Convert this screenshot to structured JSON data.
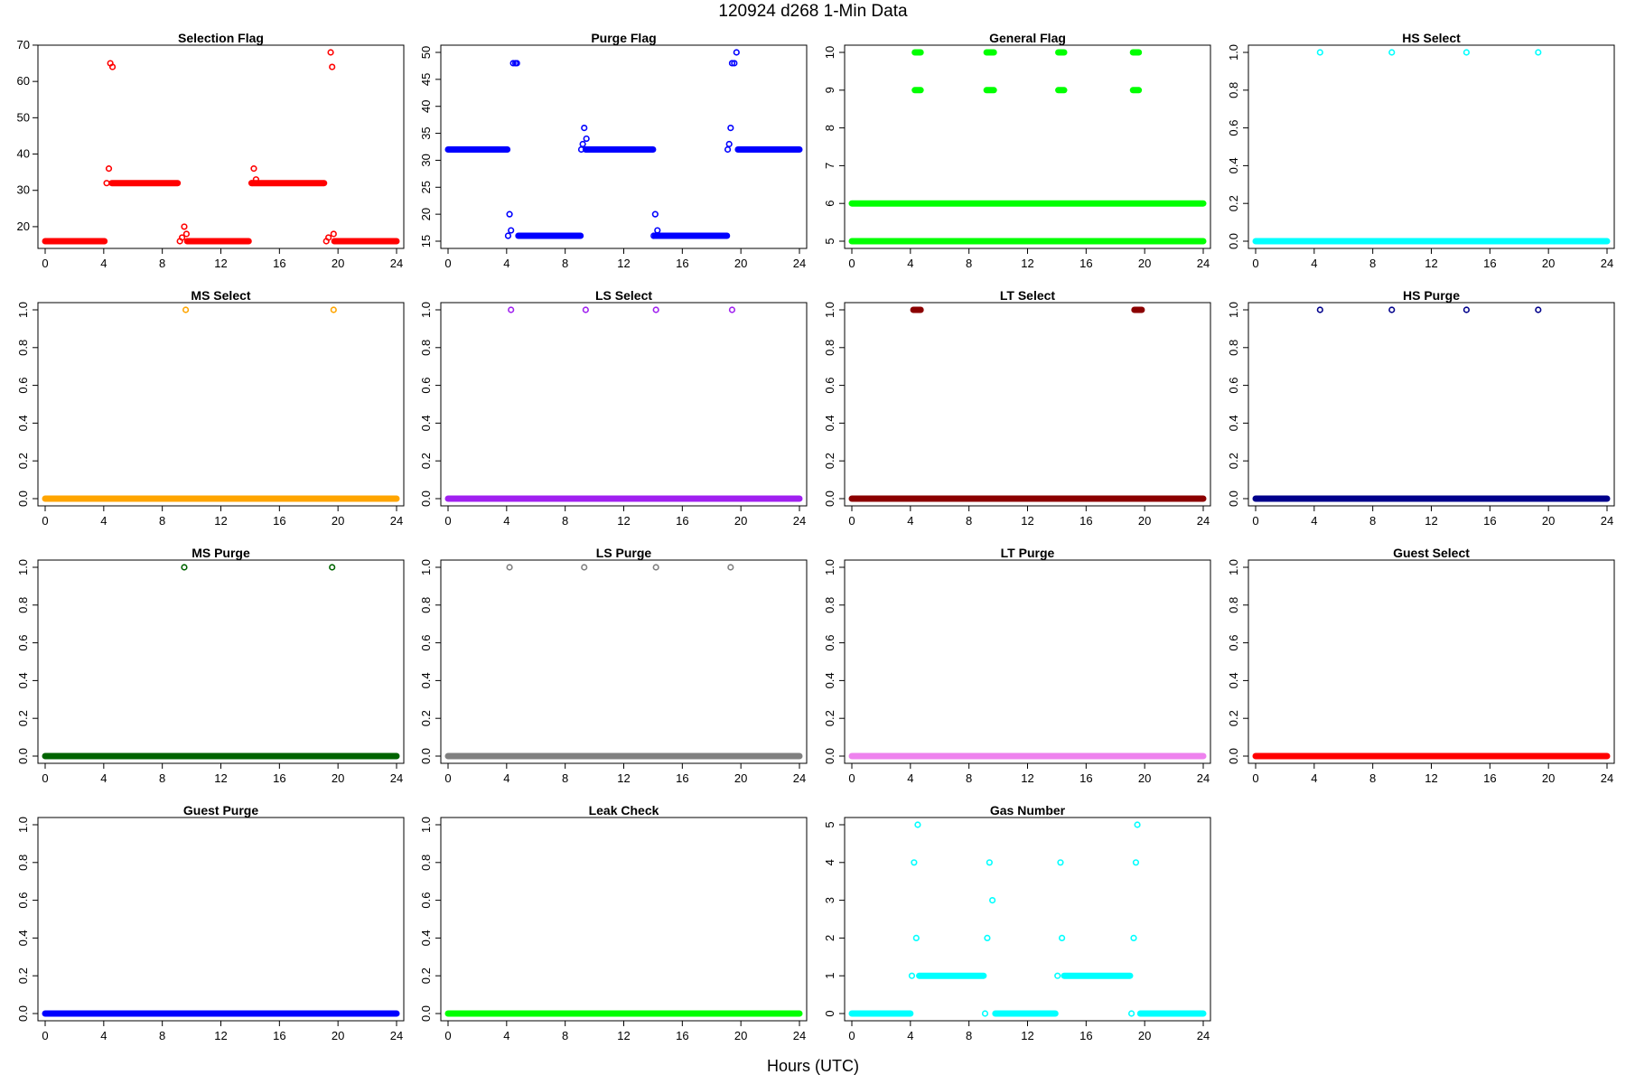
{
  "figure": {
    "title": "120924   d268   1-Min Data",
    "xlabel": "Hours (UTC)"
  },
  "chart_data": [
    {
      "type": "scatter",
      "title": "Selection Flag",
      "color": "#ff0000",
      "xlim": [
        0,
        24
      ],
      "ylim": [
        16,
        68
      ],
      "xticks": [
        0,
        4,
        8,
        12,
        16,
        20,
        24
      ],
      "yticks": [
        20,
        30,
        40,
        50,
        60,
        70
      ],
      "yrot": false,
      "segments": [
        [
          0,
          4.05,
          16
        ],
        [
          4.55,
          9.05,
          32
        ],
        [
          9.7,
          13.9,
          16
        ],
        [
          14.15,
          19.05,
          32
        ],
        [
          19.75,
          24,
          16
        ]
      ],
      "points": [
        [
          4.2,
          32
        ],
        [
          4.35,
          36
        ],
        [
          4.45,
          65
        ],
        [
          4.6,
          64
        ],
        [
          9.2,
          16
        ],
        [
          9.35,
          17
        ],
        [
          9.5,
          20
        ],
        [
          9.65,
          18
        ],
        [
          14.1,
          32
        ],
        [
          14.25,
          36
        ],
        [
          14.4,
          33
        ],
        [
          19.2,
          16
        ],
        [
          19.35,
          17
        ],
        [
          19.5,
          68
        ],
        [
          19.6,
          64
        ],
        [
          19.7,
          18
        ]
      ]
    },
    {
      "type": "scatter",
      "title": "Purge Flag",
      "color": "#0000ff",
      "xlim": [
        0,
        24
      ],
      "ylim": [
        15,
        50
      ],
      "xticks": [
        0,
        4,
        8,
        12,
        16,
        20,
        24
      ],
      "yticks": [
        15,
        20,
        25,
        30,
        35,
        40,
        45,
        50
      ],
      "yrot": true,
      "segments": [
        [
          0,
          4.05,
          32
        ],
        [
          4.8,
          9.05,
          16
        ],
        [
          9.4,
          14.0,
          32
        ],
        [
          14.15,
          19.05,
          16
        ],
        [
          19.8,
          24,
          32
        ]
      ],
      "points": [
        [
          4.1,
          16
        ],
        [
          4.2,
          20
        ],
        [
          4.3,
          17
        ],
        [
          4.45,
          48
        ],
        [
          4.6,
          48
        ],
        [
          4.7,
          48
        ],
        [
          9.1,
          32
        ],
        [
          9.2,
          33
        ],
        [
          9.3,
          36
        ],
        [
          9.45,
          34
        ],
        [
          14.05,
          16
        ],
        [
          14.15,
          20
        ],
        [
          14.3,
          17
        ],
        [
          19.1,
          32
        ],
        [
          19.2,
          33
        ],
        [
          19.3,
          36
        ],
        [
          19.4,
          48
        ],
        [
          19.55,
          48
        ],
        [
          19.7,
          50
        ]
      ]
    },
    {
      "type": "scatter",
      "title": "General Flag",
      "color": "#00ff00",
      "xlim": [
        0,
        24
      ],
      "ylim": [
        5,
        10
      ],
      "xticks": [
        0,
        4,
        8,
        12,
        16,
        20,
        24
      ],
      "yticks": [
        5,
        6,
        7,
        8,
        9,
        10
      ],
      "yrot": true,
      "segments": [
        [
          0,
          24,
          5
        ],
        [
          0,
          24,
          6
        ],
        [
          4.3,
          4.7,
          9
        ],
        [
          4.3,
          4.7,
          10
        ],
        [
          9.2,
          9.7,
          9
        ],
        [
          9.2,
          9.7,
          10
        ],
        [
          14.1,
          14.5,
          9
        ],
        [
          14.1,
          14.5,
          10
        ],
        [
          19.2,
          19.6,
          9
        ],
        [
          19.2,
          19.6,
          10
        ]
      ],
      "points": []
    },
    {
      "type": "scatter",
      "title": "HS Select",
      "color": "#00ffff",
      "xlim": [
        0,
        24
      ],
      "ylim": [
        0,
        1
      ],
      "xticks": [
        0,
        4,
        8,
        12,
        16,
        20,
        24
      ],
      "yticks": [
        0,
        0.2,
        0.4,
        0.6,
        0.8,
        1
      ],
      "yrot": true,
      "segments": [
        [
          0,
          24,
          0
        ]
      ],
      "points": [
        [
          4.4,
          1
        ],
        [
          9.3,
          1
        ],
        [
          14.4,
          1
        ],
        [
          19.3,
          1
        ]
      ]
    },
    {
      "type": "scatter",
      "title": "MS Select",
      "color": "#ffa500",
      "xlim": [
        0,
        24
      ],
      "ylim": [
        0,
        1
      ],
      "xticks": [
        0,
        4,
        8,
        12,
        16,
        20,
        24
      ],
      "yticks": [
        0,
        0.2,
        0.4,
        0.6,
        0.8,
        1
      ],
      "yrot": true,
      "segments": [
        [
          0,
          24,
          0
        ]
      ],
      "points": [
        [
          9.6,
          1
        ],
        [
          19.7,
          1
        ]
      ]
    },
    {
      "type": "scatter",
      "title": "LS Select",
      "color": "#a020f0",
      "xlim": [
        0,
        24
      ],
      "ylim": [
        0,
        1
      ],
      "xticks": [
        0,
        4,
        8,
        12,
        16,
        20,
        24
      ],
      "yticks": [
        0,
        0.2,
        0.4,
        0.6,
        0.8,
        1
      ],
      "yrot": true,
      "segments": [
        [
          0,
          24,
          0
        ]
      ],
      "points": [
        [
          4.3,
          1
        ],
        [
          9.4,
          1
        ],
        [
          14.2,
          1
        ],
        [
          19.4,
          1
        ]
      ]
    },
    {
      "type": "scatter",
      "title": "LT Select",
      "color": "#8b0000",
      "xlim": [
        0,
        24
      ],
      "ylim": [
        0,
        1
      ],
      "xticks": [
        0,
        4,
        8,
        12,
        16,
        20,
        24
      ],
      "yticks": [
        0,
        0.2,
        0.4,
        0.6,
        0.8,
        1
      ],
      "yrot": true,
      "segments": [
        [
          0,
          24,
          0
        ],
        [
          4.2,
          4.7,
          1
        ],
        [
          19.3,
          19.8,
          1
        ]
      ],
      "points": []
    },
    {
      "type": "scatter",
      "title": "HS Purge",
      "color": "#00008b",
      "xlim": [
        0,
        24
      ],
      "ylim": [
        0,
        1
      ],
      "xticks": [
        0,
        4,
        8,
        12,
        16,
        20,
        24
      ],
      "yticks": [
        0,
        0.2,
        0.4,
        0.6,
        0.8,
        1
      ],
      "yrot": true,
      "segments": [
        [
          0,
          24,
          0
        ]
      ],
      "points": [
        [
          4.4,
          1
        ],
        [
          9.3,
          1
        ],
        [
          14.4,
          1
        ],
        [
          19.3,
          1
        ]
      ]
    },
    {
      "type": "scatter",
      "title": "MS Purge",
      "color": "#006400",
      "xlim": [
        0,
        24
      ],
      "ylim": [
        0,
        1
      ],
      "xticks": [
        0,
        4,
        8,
        12,
        16,
        20,
        24
      ],
      "yticks": [
        0,
        0.2,
        0.4,
        0.6,
        0.8,
        1
      ],
      "yrot": true,
      "segments": [
        [
          0,
          24,
          0
        ]
      ],
      "points": [
        [
          9.5,
          1
        ],
        [
          19.6,
          1
        ]
      ]
    },
    {
      "type": "scatter",
      "title": "LS Purge",
      "color": "#808080",
      "xlim": [
        0,
        24
      ],
      "ylim": [
        0,
        1
      ],
      "xticks": [
        0,
        4,
        8,
        12,
        16,
        20,
        24
      ],
      "yticks": [
        0,
        0.2,
        0.4,
        0.6,
        0.8,
        1
      ],
      "yrot": true,
      "segments": [
        [
          0,
          24,
          0
        ]
      ],
      "points": [
        [
          4.2,
          1
        ],
        [
          9.3,
          1
        ],
        [
          14.2,
          1
        ],
        [
          19.3,
          1
        ]
      ]
    },
    {
      "type": "scatter",
      "title": "LT Purge",
      "color": "#ee82ee",
      "xlim": [
        0,
        24
      ],
      "ylim": [
        0,
        1
      ],
      "xticks": [
        0,
        4,
        8,
        12,
        16,
        20,
        24
      ],
      "yticks": [
        0,
        0.2,
        0.4,
        0.6,
        0.8,
        1
      ],
      "yrot": true,
      "segments": [
        [
          0,
          24,
          0
        ]
      ],
      "points": []
    },
    {
      "type": "scatter",
      "title": "Guest Select",
      "color": "#ff0000",
      "xlim": [
        0,
        24
      ],
      "ylim": [
        0,
        1
      ],
      "xticks": [
        0,
        4,
        8,
        12,
        16,
        20,
        24
      ],
      "yticks": [
        0,
        0.2,
        0.4,
        0.6,
        0.8,
        1
      ],
      "yrot": true,
      "segments": [
        [
          0,
          24,
          0
        ]
      ],
      "points": []
    },
    {
      "type": "scatter",
      "title": "Guest Purge",
      "color": "#0000ff",
      "xlim": [
        0,
        24
      ],
      "ylim": [
        0,
        1
      ],
      "xticks": [
        0,
        4,
        8,
        12,
        16,
        20,
        24
      ],
      "yticks": [
        0,
        0.2,
        0.4,
        0.6,
        0.8,
        1
      ],
      "yrot": true,
      "segments": [
        [
          0,
          24,
          0
        ]
      ],
      "points": []
    },
    {
      "type": "scatter",
      "title": "Leak Check",
      "color": "#00ff00",
      "xlim": [
        0,
        24
      ],
      "ylim": [
        0,
        1
      ],
      "xticks": [
        0,
        4,
        8,
        12,
        16,
        20,
        24
      ],
      "yticks": [
        0,
        0.2,
        0.4,
        0.6,
        0.8,
        1
      ],
      "yrot": true,
      "segments": [
        [
          0,
          24,
          0
        ]
      ],
      "points": []
    },
    {
      "type": "scatter",
      "title": "Gas Number",
      "color": "#00ffff",
      "xlim": [
        0,
        24
      ],
      "ylim": [
        0,
        5
      ],
      "xticks": [
        0,
        4,
        8,
        12,
        16,
        20,
        24
      ],
      "yticks": [
        0,
        1,
        2,
        3,
        4,
        5
      ],
      "yrot": true,
      "segments": [
        [
          0,
          4.0,
          0
        ],
        [
          4.6,
          9.0,
          1
        ],
        [
          9.8,
          13.9,
          0
        ],
        [
          14.5,
          19.0,
          1
        ],
        [
          19.7,
          24,
          0
        ]
      ],
      "points": [
        [
          4.1,
          1
        ],
        [
          4.25,
          4
        ],
        [
          4.4,
          2
        ],
        [
          4.5,
          5
        ],
        [
          9.1,
          0
        ],
        [
          9.25,
          2
        ],
        [
          9.4,
          4
        ],
        [
          9.6,
          3
        ],
        [
          14.05,
          1
        ],
        [
          14.25,
          4
        ],
        [
          14.35,
          2
        ],
        [
          19.1,
          0
        ],
        [
          19.25,
          2
        ],
        [
          19.4,
          4
        ],
        [
          19.5,
          5
        ]
      ]
    }
  ]
}
